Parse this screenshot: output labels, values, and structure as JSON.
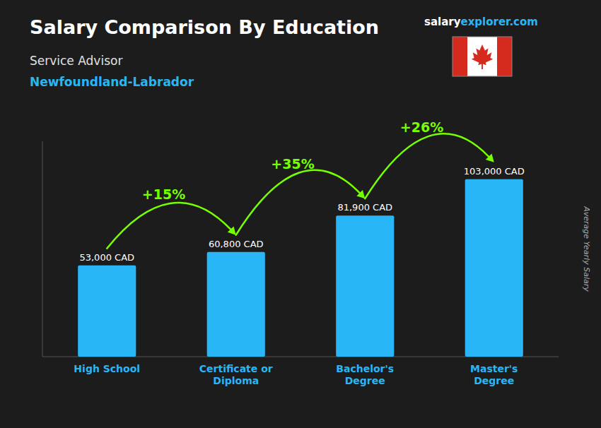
{
  "chart_data": {
    "type": "bar",
    "title": "Salary Comparison By Education",
    "subtitle": "Service Advisor",
    "location": "Newfoundland-Labrador",
    "brand": [
      "salary",
      "explorer",
      ".com"
    ],
    "ylabel": "Average Yearly Salary",
    "categories": [
      "High School",
      "Certificate or\nDiploma",
      "Bachelor's\nDegree",
      "Master's\nDegree"
    ],
    "values": [
      53000,
      60800,
      81900,
      103000
    ],
    "value_labels": [
      "53,000 CAD",
      "60,800 CAD",
      "81,900 CAD",
      "103,000 CAD"
    ],
    "annotations": [
      "+15%",
      "+35%",
      "+26%"
    ],
    "color": "#29b6f6",
    "annotation_color": "#76ff03",
    "ylim": [
      0,
      125000
    ],
    "data_labels": true,
    "tick_labels": "x",
    "grid": false
  }
}
